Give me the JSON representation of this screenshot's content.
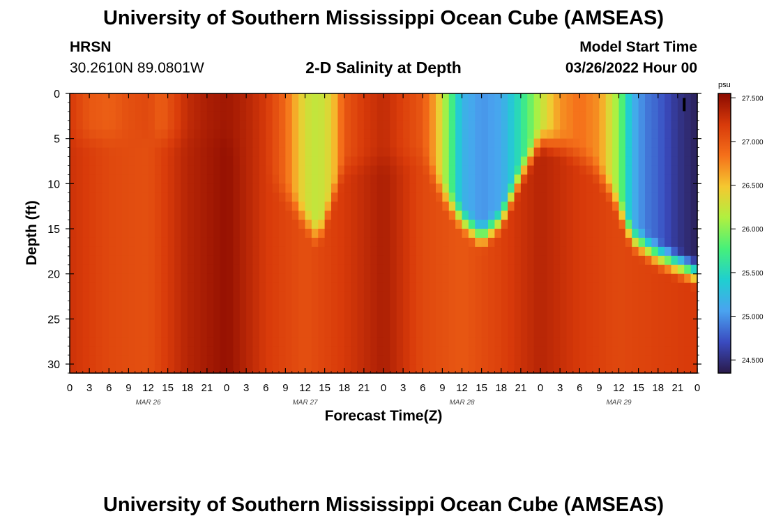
{
  "header": {
    "title": "University of Southern Mississippi Ocean Cube (AMSEAS)",
    "station": "HRSN",
    "coords": "30.2610N  89.0801W",
    "plot_title": "2-D Salinity at Depth",
    "model_start_label": "Model Start Time",
    "model_start_value": "03/26/2022 Hour 00"
  },
  "footer": {
    "title": "University of Southern Mississippi Ocean Cube (AMSEAS)"
  },
  "chart_data": {
    "type": "heatmap",
    "title": "2-D Salinity at Depth",
    "xlabel": "Forecast Time(Z)",
    "ylabel": "Depth (ft)",
    "x_hours": [
      0,
      96
    ],
    "y_depth_ft": [
      0,
      31
    ],
    "x_tick_labels": [
      "0",
      "3",
      "6",
      "9",
      "12",
      "15",
      "18",
      "21",
      "0",
      "3",
      "6",
      "9",
      "12",
      "15",
      "18",
      "21",
      "0",
      "3",
      "6",
      "9",
      "12",
      "15",
      "18",
      "21",
      "0",
      "3",
      "6",
      "9",
      "12",
      "15",
      "18",
      "21",
      "0"
    ],
    "y_ticks": [
      0,
      5,
      10,
      15,
      20,
      25,
      30
    ],
    "y_tick_labels": [
      "0",
      "5",
      "10",
      "15",
      "20",
      "25",
      "30"
    ],
    "date_labels": [
      {
        "hour": 12,
        "label": "MAR 26"
      },
      {
        "hour": 36,
        "label": "MAR 27"
      },
      {
        "hour": 60,
        "label": "MAR 28"
      },
      {
        "hour": 84,
        "label": "MAR 29"
      }
    ],
    "colorbar": {
      "unit": "psu",
      "min": 24.35,
      "max": 27.55,
      "ticks": [
        27.5,
        27.0,
        26.5,
        26.0,
        25.5,
        25.0,
        24.5
      ],
      "tick_labels": [
        "27.500",
        "27.000",
        "26.500",
        "26.000",
        "25.500",
        "25.000",
        "24.500"
      ],
      "colors": [
        "#2a1a4a",
        "#3a4bc0",
        "#4aa3f0",
        "#1fcfd0",
        "#46f07a",
        "#b0f040",
        "#f5c830",
        "#f5701a",
        "#d83a0a",
        "#8a0a00"
      ]
    },
    "surface_salinity_by_hour": [
      [
        0,
        27.2
      ],
      [
        3,
        27.0
      ],
      [
        6,
        26.95
      ],
      [
        9,
        27.05
      ],
      [
        12,
        27.1
      ],
      [
        14,
        26.95
      ],
      [
        18,
        27.3
      ],
      [
        21,
        27.4
      ],
      [
        24,
        27.45
      ],
      [
        27,
        27.35
      ],
      [
        30,
        27.2
      ],
      [
        33,
        26.9
      ],
      [
        36,
        26.3
      ],
      [
        38,
        26.2
      ],
      [
        40,
        26.4
      ],
      [
        42,
        27.0
      ],
      [
        45,
        27.2
      ],
      [
        48,
        27.3
      ],
      [
        51,
        27.15
      ],
      [
        54,
        27.0
      ],
      [
        56,
        26.6
      ],
      [
        58,
        25.9
      ],
      [
        60,
        25.2
      ],
      [
        63,
        25.0
      ],
      [
        66,
        25.1
      ],
      [
        69,
        25.6
      ],
      [
        72,
        26.2
      ],
      [
        75,
        26.7
      ],
      [
        78,
        26.85
      ],
      [
        81,
        26.7
      ],
      [
        84,
        26.0
      ],
      [
        86,
        25.2
      ],
      [
        88,
        24.9
      ],
      [
        90,
        24.8
      ],
      [
        93,
        24.55
      ],
      [
        96,
        24.4
      ]
    ],
    "deep_salinity_by_hour": [
      [
        0,
        27.25
      ],
      [
        6,
        27.1
      ],
      [
        12,
        27.05
      ],
      [
        18,
        27.35
      ],
      [
        24,
        27.5
      ],
      [
        30,
        27.2
      ],
      [
        36,
        27.05
      ],
      [
        42,
        27.2
      ],
      [
        48,
        27.4
      ],
      [
        54,
        27.1
      ],
      [
        60,
        27.0
      ],
      [
        66,
        27.15
      ],
      [
        72,
        27.35
      ],
      [
        78,
        27.2
      ],
      [
        84,
        27.1
      ],
      [
        90,
        27.15
      ],
      [
        96,
        27.2
      ]
    ],
    "halocline_depth_ft_by_hour": [
      [
        0,
        3
      ],
      [
        24,
        3
      ],
      [
        34,
        10
      ],
      [
        38,
        14
      ],
      [
        42,
        6
      ],
      [
        54,
        5
      ],
      [
        57,
        9
      ],
      [
        60,
        12
      ],
      [
        63,
        14
      ],
      [
        66,
        12
      ],
      [
        69,
        7
      ],
      [
        72,
        3
      ],
      [
        76,
        4
      ],
      [
        80,
        6
      ],
      [
        83,
        9
      ],
      [
        86,
        14
      ],
      [
        90,
        16
      ],
      [
        96,
        18
      ]
    ],
    "annotation_depth_ft": [
      0.5,
      1.5
    ],
    "annotation_hour": 94
  }
}
